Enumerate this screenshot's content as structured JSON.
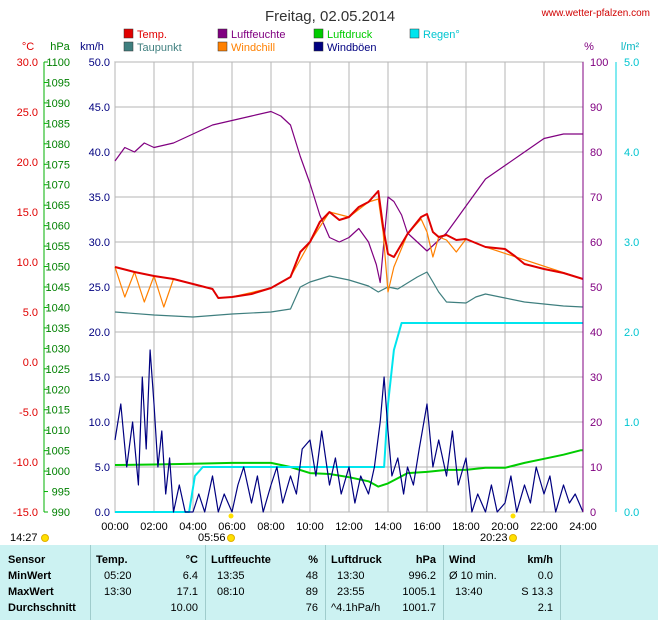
{
  "header": {
    "title": "Freitag, 02.05.2014",
    "site": "www.wetter-pfalzen.com"
  },
  "axis_units": {
    "temp": "°C",
    "pressure": "hPa",
    "wind": "km/h",
    "humidity": "%",
    "rain": "l/m²"
  },
  "legend": [
    {
      "label": "Temp.",
      "color": "#e00000"
    },
    {
      "label": "Luftfeuchte",
      "color": "#800080"
    },
    {
      "label": "Luftdruck",
      "color": "#00cc00"
    },
    {
      "label": "Regen°",
      "color": "#00e5ee"
    },
    {
      "label": "Taupunkt",
      "color": "#3f7f7f"
    },
    {
      "label": "Windchill",
      "color": "#ff8000"
    },
    {
      "label": "Windböen",
      "color": "#000080"
    }
  ],
  "sun": {
    "sunrise_label": "05:56",
    "sunset_label": "20:23",
    "now_label": "14:27"
  },
  "chart_data": {
    "type": "line",
    "title": "Freitag, 02.05.2014",
    "x_ticks": [
      "00:00",
      "02:00",
      "04:00",
      "06:00",
      "08:00",
      "10:00",
      "12:00",
      "14:00",
      "16:00",
      "18:00",
      "20:00",
      "22:00",
      "24:00"
    ],
    "axes": {
      "temp_c": {
        "unit": "°C",
        "range": [
          -15,
          30
        ],
        "ticks": [
          "30.0",
          "25.0",
          "20.0",
          "15.0",
          "10.0",
          "5.0",
          "0.0",
          "-5.0",
          "-10.0",
          "-15.0"
        ]
      },
      "pressure_hpa": {
        "unit": "hPa",
        "range": [
          990,
          1100
        ],
        "ticks": [
          "1100",
          "1095",
          "1090",
          "1085",
          "1080",
          "1075",
          "1070",
          "1065",
          "1060",
          "1055",
          "1050",
          "1045",
          "1040",
          "1035",
          "1030",
          "1025",
          "1020",
          "1015",
          "1010",
          "1005",
          "1000",
          "995",
          "990"
        ]
      },
      "wind_kmh": {
        "unit": "km/h",
        "range": [
          0,
          50
        ],
        "ticks": [
          "50.0",
          "45.0",
          "40.0",
          "35.0",
          "30.0",
          "25.0",
          "20.0",
          "15.0",
          "10.0",
          "5.0",
          "0.0"
        ]
      },
      "humidity_pct": {
        "unit": "%",
        "range": [
          0,
          100
        ],
        "ticks": [
          "100",
          "90",
          "80",
          "70",
          "60",
          "50",
          "40",
          "30",
          "20",
          "10",
          "0"
        ]
      },
      "rain_lm2": {
        "unit": "l/m²",
        "range": [
          0,
          5
        ],
        "ticks": [
          "5.0",
          "4.0",
          "3.0",
          "2.0",
          "1.0",
          "0.0"
        ]
      }
    },
    "grid": true,
    "series": [
      {
        "name": "Temp.",
        "axis": "temp_c",
        "color": "#e00000",
        "points": [
          [
            0,
            9.5
          ],
          [
            1,
            9.0
          ],
          [
            2,
            8.6
          ],
          [
            3,
            8.3
          ],
          [
            4,
            7.8
          ],
          [
            5,
            7.3
          ],
          [
            5.3,
            6.4
          ],
          [
            6,
            6.5
          ],
          [
            7,
            6.8
          ],
          [
            8,
            7.4
          ],
          [
            9,
            8.5
          ],
          [
            9.5,
            11.0
          ],
          [
            10,
            12.0
          ],
          [
            10.5,
            14.0
          ],
          [
            11,
            15.0
          ],
          [
            11.5,
            14.2
          ],
          [
            12,
            14.5
          ],
          [
            12.5,
            15.5
          ],
          [
            13,
            16.0
          ],
          [
            13.5,
            17.1
          ],
          [
            13.75,
            13.5
          ],
          [
            14,
            10.8
          ],
          [
            14.3,
            10.5
          ],
          [
            15,
            12.8
          ],
          [
            15.7,
            14.5
          ],
          [
            16,
            14.8
          ],
          [
            16.3,
            13.0
          ],
          [
            16.6,
            12.5
          ],
          [
            17,
            12.7
          ],
          [
            17.5,
            12.2
          ],
          [
            18,
            12.3
          ],
          [
            19,
            11.5
          ],
          [
            20,
            11.3
          ],
          [
            20.5,
            10.6
          ],
          [
            21,
            9.8
          ],
          [
            22,
            9.3
          ],
          [
            23,
            8.9
          ],
          [
            24,
            8.3
          ]
        ]
      },
      {
        "name": "Taupunkt",
        "axis": "temp_c",
        "color": "#3f7f7f",
        "points": [
          [
            0,
            5.0
          ],
          [
            2,
            4.7
          ],
          [
            4,
            4.5
          ],
          [
            6,
            4.8
          ],
          [
            8,
            5.0
          ],
          [
            9,
            5.3
          ],
          [
            9.5,
            7.5
          ],
          [
            10,
            8.0
          ],
          [
            11,
            8.6
          ],
          [
            12,
            8.2
          ],
          [
            13,
            7.6
          ],
          [
            13.5,
            7.0
          ],
          [
            14,
            7.5
          ],
          [
            14.5,
            7.3
          ],
          [
            15,
            7.9
          ],
          [
            15.5,
            8.5
          ],
          [
            16,
            9.0
          ],
          [
            16.3,
            8.0
          ],
          [
            16.6,
            7.0
          ],
          [
            17,
            6.0
          ],
          [
            18,
            5.9
          ],
          [
            18.5,
            6.5
          ],
          [
            19,
            6.8
          ],
          [
            20,
            6.4
          ],
          [
            21,
            6.0
          ],
          [
            22,
            5.8
          ],
          [
            23,
            5.6
          ],
          [
            24,
            5.5
          ]
        ]
      },
      {
        "name": "Windchill",
        "axis": "temp_c",
        "color": "#ff8000",
        "points": [
          [
            0,
            9.5
          ],
          [
            0.5,
            6.5
          ],
          [
            1,
            9.0
          ],
          [
            1.5,
            6.0
          ],
          [
            2,
            8.6
          ],
          [
            2.5,
            5.5
          ],
          [
            3,
            8.3
          ],
          [
            4,
            7.8
          ],
          [
            5,
            7.3
          ],
          [
            5.3,
            6.4
          ],
          [
            6,
            6.5
          ],
          [
            8,
            7.4
          ],
          [
            9,
            8.5
          ],
          [
            10,
            12.0
          ],
          [
            11,
            15.0
          ],
          [
            12,
            14.5
          ],
          [
            13,
            16.0
          ],
          [
            13.5,
            16.3
          ],
          [
            13.75,
            13.0
          ],
          [
            14,
            7.0
          ],
          [
            14.3,
            9.5
          ],
          [
            15,
            12.8
          ],
          [
            15.7,
            14.3
          ],
          [
            16,
            13.0
          ],
          [
            16.3,
            10.5
          ],
          [
            16.6,
            12.5
          ],
          [
            17,
            12.2
          ],
          [
            17.5,
            11.0
          ],
          [
            18,
            12.3
          ],
          [
            19,
            11.5
          ],
          [
            24,
            8.3
          ]
        ]
      },
      {
        "name": "Luftfeuchte",
        "axis": "humidity_pct",
        "color": "#800080",
        "points": [
          [
            0,
            78
          ],
          [
            0.5,
            81
          ],
          [
            1,
            80
          ],
          [
            1.5,
            82
          ],
          [
            2,
            81
          ],
          [
            3,
            82
          ],
          [
            4,
            84
          ],
          [
            5,
            86
          ],
          [
            6,
            87
          ],
          [
            7,
            88
          ],
          [
            8,
            89
          ],
          [
            8.5,
            88
          ],
          [
            9,
            86
          ],
          [
            9.5,
            79
          ],
          [
            10,
            73
          ],
          [
            10.5,
            66
          ],
          [
            11,
            61
          ],
          [
            11.5,
            60
          ],
          [
            12,
            61
          ],
          [
            12.5,
            63
          ],
          [
            13,
            60
          ],
          [
            13.4,
            55
          ],
          [
            13.6,
            51
          ],
          [
            14,
            70
          ],
          [
            14.3,
            69
          ],
          [
            14.7,
            66
          ],
          [
            15,
            62
          ],
          [
            15.5,
            60
          ],
          [
            16,
            58
          ],
          [
            16.5,
            60
          ],
          [
            17,
            62
          ],
          [
            17.5,
            65
          ],
          [
            18,
            68
          ],
          [
            19,
            74
          ],
          [
            20,
            77
          ],
          [
            21,
            80
          ],
          [
            22,
            83
          ],
          [
            23,
            84
          ],
          [
            24,
            84
          ]
        ]
      },
      {
        "name": "Luftdruck",
        "axis": "pressure_hpa",
        "color": "#00cc00",
        "points": [
          [
            0,
            1001.5
          ],
          [
            2,
            1001.6
          ],
          [
            4,
            1001.8
          ],
          [
            6,
            1002.0
          ],
          [
            8,
            1002.0
          ],
          [
            9,
            1001.0
          ],
          [
            10,
            999.5
          ],
          [
            11,
            999.3
          ],
          [
            12,
            998.5
          ],
          [
            13,
            997.5
          ],
          [
            13.5,
            996.2
          ],
          [
            14,
            997.0
          ],
          [
            15,
            999.5
          ],
          [
            16,
            999.8
          ],
          [
            17,
            1000.3
          ],
          [
            18,
            1000.3
          ],
          [
            19,
            1000.8
          ],
          [
            20,
            1000.8
          ],
          [
            21,
            1002.0
          ],
          [
            22,
            1003.0
          ],
          [
            23,
            1004.0
          ],
          [
            23.9,
            1005.1
          ],
          [
            24,
            1005.1
          ]
        ]
      },
      {
        "name": "Regen°",
        "axis": "rain_lm2",
        "color": "#00e5ee",
        "points": [
          [
            0,
            0
          ],
          [
            3.8,
            0
          ],
          [
            4.1,
            0.4
          ],
          [
            4.5,
            0.5
          ],
          [
            13.8,
            0.5
          ],
          [
            14,
            1.2
          ],
          [
            14.3,
            1.8
          ],
          [
            14.7,
            2.1
          ],
          [
            24,
            2.1
          ]
        ]
      },
      {
        "name": "Windböen",
        "axis": "wind_kmh",
        "color": "#000080",
        "points": [
          [
            0,
            8
          ],
          [
            0.3,
            12
          ],
          [
            0.6,
            5
          ],
          [
            0.9,
            10
          ],
          [
            1.2,
            3
          ],
          [
            1.4,
            15
          ],
          [
            1.6,
            7
          ],
          [
            1.8,
            18
          ],
          [
            2.0,
            12
          ],
          [
            2.2,
            5
          ],
          [
            2.4,
            9
          ],
          [
            2.6,
            2
          ],
          [
            2.8,
            6
          ],
          [
            3.0,
            0
          ],
          [
            3.3,
            3
          ],
          [
            3.6,
            0
          ],
          [
            4.0,
            0
          ],
          [
            4.3,
            2
          ],
          [
            4.6,
            0
          ],
          [
            5.0,
            4
          ],
          [
            5.3,
            0
          ],
          [
            5.6,
            2
          ],
          [
            6.0,
            0
          ],
          [
            6.3,
            3
          ],
          [
            6.6,
            5
          ],
          [
            7.0,
            1
          ],
          [
            7.3,
            4
          ],
          [
            7.6,
            0
          ],
          [
            8.0,
            3
          ],
          [
            8.3,
            5
          ],
          [
            8.6,
            1
          ],
          [
            9.0,
            4
          ],
          [
            9.3,
            2
          ],
          [
            9.6,
            7
          ],
          [
            10.0,
            8
          ],
          [
            10.3,
            4
          ],
          [
            10.6,
            9
          ],
          [
            11.0,
            3
          ],
          [
            11.3,
            6
          ],
          [
            11.6,
            2
          ],
          [
            12.0,
            5
          ],
          [
            12.3,
            1
          ],
          [
            12.6,
            4
          ],
          [
            13.0,
            2
          ],
          [
            13.3,
            5
          ],
          [
            13.6,
            10
          ],
          [
            13.8,
            15
          ],
          [
            14.0,
            9
          ],
          [
            14.2,
            4
          ],
          [
            14.5,
            6
          ],
          [
            14.8,
            2
          ],
          [
            15.0,
            5
          ],
          [
            15.3,
            3
          ],
          [
            15.6,
            7
          ],
          [
            16.0,
            12
          ],
          [
            16.3,
            5
          ],
          [
            16.6,
            8
          ],
          [
            17.0,
            4
          ],
          [
            17.3,
            9
          ],
          [
            17.6,
            3
          ],
          [
            18.0,
            6
          ],
          [
            18.3,
            0
          ],
          [
            18.6,
            2
          ],
          [
            19.0,
            0
          ],
          [
            19.3,
            3
          ],
          [
            19.6,
            0
          ],
          [
            20.0,
            1
          ],
          [
            20.3,
            4
          ],
          [
            20.6,
            0
          ],
          [
            21.0,
            3
          ],
          [
            21.3,
            1
          ],
          [
            21.6,
            5
          ],
          [
            22.0,
            2
          ],
          [
            22.3,
            4
          ],
          [
            22.6,
            0
          ],
          [
            23.0,
            3
          ],
          [
            23.3,
            1
          ],
          [
            23.6,
            2
          ],
          [
            24.0,
            0
          ]
        ]
      }
    ]
  },
  "stats": {
    "headers": {
      "sensor": "Sensor",
      "temp": "Temp.",
      "temp_unit": "°C",
      "hum": "Luftfeuchte",
      "hum_unit": "%",
      "press": "Luftdruck",
      "press_unit": "hPa",
      "wind": "Wind",
      "wind_unit": "km/h"
    },
    "rows": [
      {
        "label": "MinWert",
        "temp_time": "05:20",
        "temp_val": "6.4",
        "hum_time": "13:35",
        "hum_val": "48",
        "press_time": "13:30",
        "press_val": "996.2",
        "wind_time": "Ø 10 min.",
        "wind_val": "0.0"
      },
      {
        "label": "MaxWert",
        "temp_time": "13:30",
        "temp_val": "17.1",
        "hum_time": "08:10",
        "hum_val": "89",
        "press_time": "23:55",
        "press_val": "1005.1",
        "wind_time": "13:40",
        "wind_val": "S 13.3"
      },
      {
        "label": "Durchschnitt",
        "temp_time": "",
        "temp_val": "10.00",
        "hum_time": "",
        "hum_val": "76",
        "press_time": "^4.1hPa/h",
        "press_val": "1001.7",
        "wind_time": "",
        "wind_val": "2.1"
      }
    ]
  }
}
